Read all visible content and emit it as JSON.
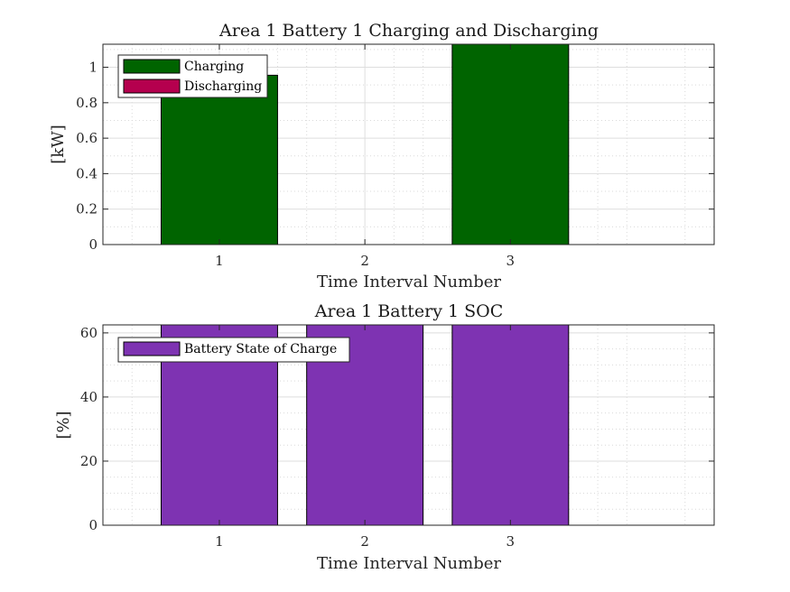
{
  "colors": {
    "charging": "#006400",
    "discharging": "#B5004E",
    "soc": "#7E33B2"
  },
  "chart_data": [
    {
      "type": "bar",
      "title": "Area 1 Battery 1 Charging and Discharging",
      "xlabel": "Time Interval Number",
      "ylabel": "[kW]",
      "x": [
        1,
        2,
        3
      ],
      "xticks": [
        "1",
        "2",
        "3"
      ],
      "xlim": [
        0.2,
        4.4
      ],
      "ylim": [
        0,
        1.13
      ],
      "yticks": [
        0,
        0.2,
        0.4,
        0.6,
        0.8,
        1
      ],
      "ytick_labels": [
        "0",
        "0.2",
        "0.4",
        "0.6",
        "0.8",
        "1"
      ],
      "grid": true,
      "minor_grid": true,
      "legend_position": "top-left",
      "series": [
        {
          "name": "Charging",
          "values": [
            0.955,
            0,
            1.13
          ]
        },
        {
          "name": "Discharging",
          "values": [
            0,
            0,
            0
          ]
        }
      ]
    },
    {
      "type": "bar",
      "title": "Area 1 Battery 1 SOC",
      "xlabel": "Time Interval Number",
      "ylabel": "[%]",
      "x": [
        1,
        2,
        3
      ],
      "xticks": [
        "1",
        "2",
        "3"
      ],
      "xlim": [
        0.2,
        4.4
      ],
      "ylim": [
        0,
        62.5
      ],
      "yticks": [
        0,
        20,
        40,
        60
      ],
      "ytick_labels": [
        "0",
        "20",
        "40",
        "60"
      ],
      "grid": true,
      "minor_grid": true,
      "legend_position": "top-left",
      "series": [
        {
          "name": "Battery State of Charge",
          "values": [
            62.5,
            62.5,
            62.5
          ]
        }
      ]
    }
  ]
}
